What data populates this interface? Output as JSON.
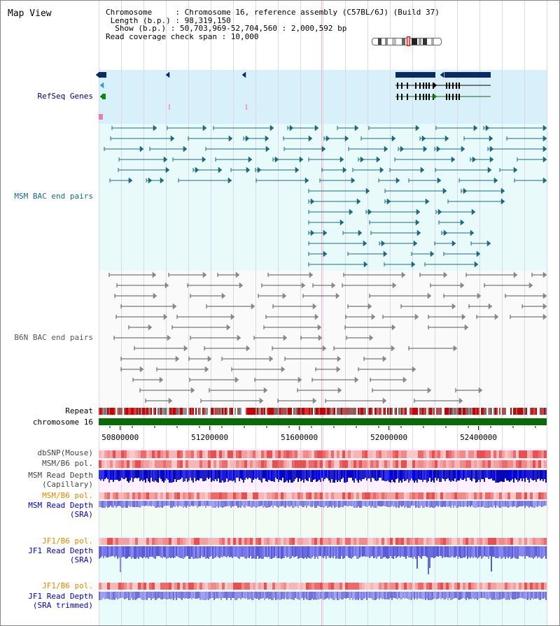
{
  "view_title": "Map View",
  "info": {
    "chromosome_label": "Chromosome     : Chromosome 16, reference assembly (C57BL/6J) (Build 37)",
    "length_label": " Length (b.p.) : 98,319,150",
    "show_label": "  Show (b.p.) : 50,703,969-52,704,560 : 2,000,592 bp",
    "coverage_label": "Read coverage check span : 10,000"
  },
  "tracks": {
    "refseq": {
      "label": "RefSeq Genes",
      "color": "#000080"
    },
    "msm_bac": {
      "label": "MSM BAC end pairs",
      "color": "#1a6a80"
    },
    "b6n_bac": {
      "label": "B6N BAC end pairs",
      "color": "#555555"
    },
    "repeat": {
      "label": "Repeat"
    },
    "chromosome": {
      "label": "chromosome 16",
      "color": "#0a6a0a"
    },
    "dbsnp": {
      "label": "dbSNP(Mouse)"
    },
    "msm_b6_pol_1": {
      "label": "MSM/B6 pol."
    },
    "msm_read_depth_cap": {
      "label1": "MSM Read Depth",
      "label2": "(Capillary)"
    },
    "msm_b6_pol_2": {
      "label": "MSM/B6 pol.",
      "color": "#e08a00"
    },
    "msm_read_depth_sra": {
      "label1": "MSM Read Depth",
      "label2": "(SRA)",
      "color": "#0000c0"
    },
    "jf1_b6_pol_1": {
      "label": "JF1/B6 pol.",
      "color": "#e08a00"
    },
    "jf1_read_depth_sra": {
      "label1": "JF1 Read Depth",
      "label2": "(SRA)",
      "color": "#0000c0"
    },
    "jf1_b6_pol_2": {
      "label": "JF1/B6 pol.",
      "color": "#e08a00"
    },
    "jf1_read_depth_trim": {
      "label1": "JF1 Read Depth",
      "label2": "(SRA trimmed)",
      "color": "#0000c0"
    }
  },
  "axis": {
    "ticks": [
      {
        "bp": 50800000,
        "label": "50800000"
      },
      {
        "bp": 51200000,
        "label": "51200000"
      },
      {
        "bp": 51600000,
        "label": "51600000"
      },
      {
        "bp": 52000000,
        "label": "52000000"
      },
      {
        "bp": 52400000,
        "label": "52400000"
      }
    ],
    "start_bp": 50703969,
    "end_bp": 52704560
  }
}
